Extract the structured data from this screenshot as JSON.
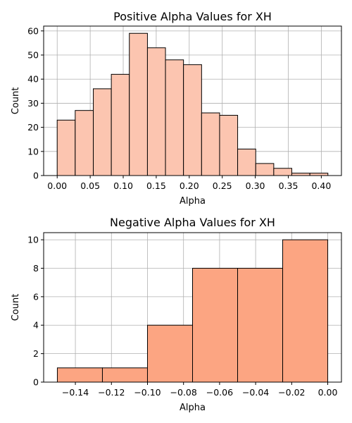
{
  "chart_data": [
    {
      "type": "histogram",
      "title": "Positive Alpha Values for XH",
      "xlabel": "Alpha",
      "ylabel": "Count",
      "bar_color": "#fcc5b0",
      "edge_color": "#000000",
      "grid": true,
      "xlim": [
        -0.0205,
        0.4305
      ],
      "ylim": [
        0,
        62
      ],
      "x_ticks": [
        "0.00",
        "0.05",
        "0.10",
        "0.15",
        "0.20",
        "0.25",
        "0.30",
        "0.35",
        "0.40"
      ],
      "x_tick_values": [
        0.0,
        0.05,
        0.1,
        0.15,
        0.2,
        0.25,
        0.3,
        0.35,
        0.4
      ],
      "y_ticks": [
        "0",
        "10",
        "20",
        "30",
        "40",
        "50",
        "60"
      ],
      "y_tick_values": [
        0,
        10,
        20,
        30,
        40,
        50,
        60
      ],
      "bin_edges": [
        0.0,
        0.0273,
        0.0547,
        0.082,
        0.1093,
        0.1367,
        0.164,
        0.1913,
        0.2187,
        0.246,
        0.2733,
        0.3007,
        0.328,
        0.3553,
        0.3827,
        0.41
      ],
      "values": [
        23,
        27,
        36,
        42,
        59,
        53,
        48,
        46,
        26,
        25,
        11,
        5,
        3,
        1,
        1
      ]
    },
    {
      "type": "histogram",
      "title": "Negative Alpha Values for XH",
      "xlabel": "Alpha",
      "ylabel": "Count",
      "bar_color": "#fca582",
      "edge_color": "#000000",
      "grid": true,
      "xlim": [
        -0.1576,
        0.0076
      ],
      "ylim": [
        0,
        10.5
      ],
      "x_ticks": [
        "−0.14",
        "−0.12",
        "−0.10",
        "−0.08",
        "−0.06",
        "−0.04",
        "−0.02",
        "0.00"
      ],
      "x_tick_values": [
        -0.14,
        -0.12,
        -0.1,
        -0.08,
        -0.06,
        -0.04,
        -0.02,
        0.0
      ],
      "y_ticks": [
        "0",
        "2",
        "4",
        "6",
        "8",
        "10"
      ],
      "y_tick_values": [
        0,
        2,
        4,
        6,
        8,
        10
      ],
      "bin_edges": [
        -0.15,
        -0.125,
        -0.1,
        -0.075,
        -0.05,
        -0.025,
        0.0
      ],
      "values": [
        1,
        1,
        4,
        8,
        8,
        10
      ]
    }
  ]
}
